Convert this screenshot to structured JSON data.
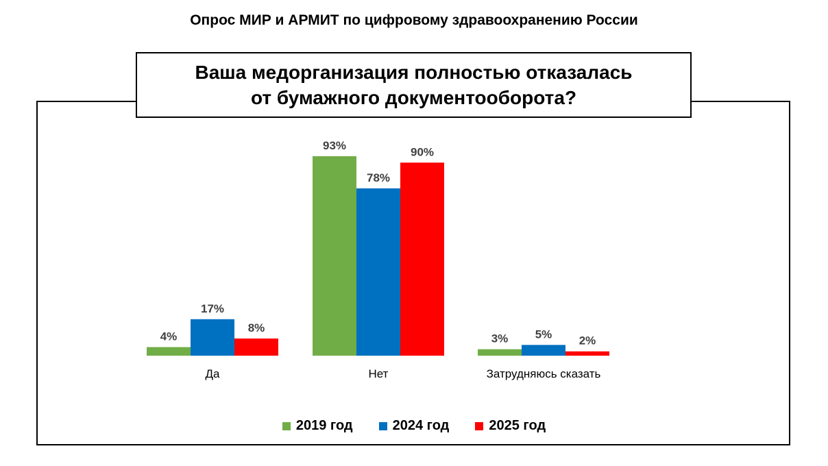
{
  "header": {
    "survey_title": "Опрос МИР и АРМИТ по цифровому здравоохранению России"
  },
  "chart_data": {
    "type": "bar",
    "title_lines": [
      "Ваша медорганизация полностью отказалась",
      "от бумажного документооборота?"
    ],
    "categories": [
      "Да",
      "Нет",
      "Затрудняюсь сказать"
    ],
    "series": [
      {
        "name": "2019 год",
        "color": "#70AD47",
        "values": [
          4,
          93,
          3
        ]
      },
      {
        "name": "2024 год",
        "color": "#0070C0",
        "values": [
          17,
          78,
          5
        ]
      },
      {
        "name": "2025 год",
        "color": "#FF0000",
        "values": [
          8,
          90,
          2
        ]
      }
    ],
    "value_suffix": "%",
    "ylim": [
      0,
      100
    ],
    "grid": false,
    "legend_position": "bottom"
  }
}
